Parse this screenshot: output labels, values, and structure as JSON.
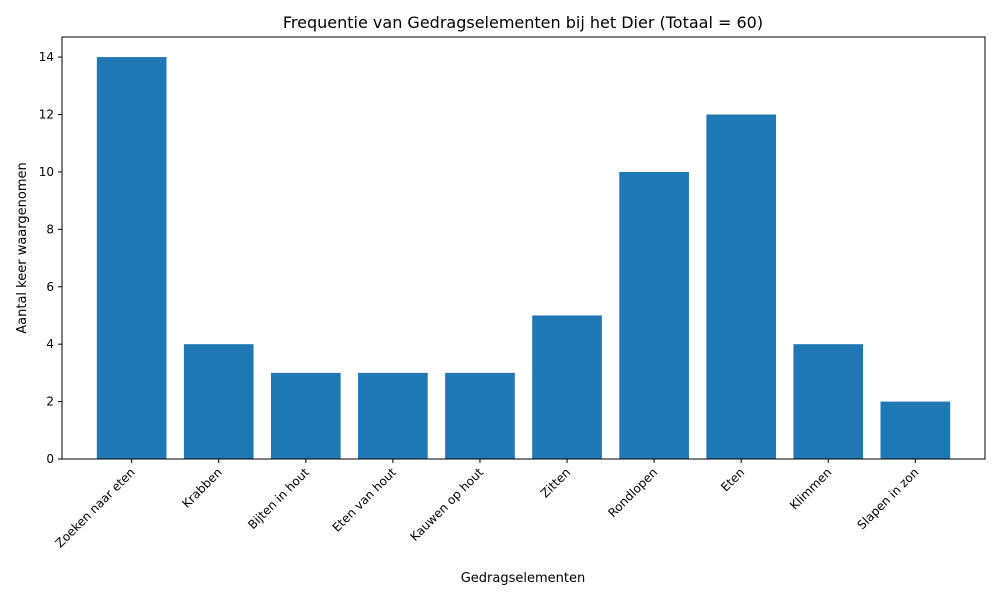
{
  "chart_data": {
    "type": "bar",
    "title": "Frequentie van Gedragselementen bij het Dier (Totaal = 60)",
    "xlabel": "Gedragselementen",
    "ylabel": "Aantal keer waargenomen",
    "categories": [
      "Zoeken naar eten",
      "Krabben",
      "Bijten in hout",
      "Eten van hout",
      "Kauwen op hout",
      "Zitten",
      "Rondlopen",
      "Eten",
      "Klimmen",
      "Slapen in zon"
    ],
    "values": [
      14,
      4,
      3,
      3,
      3,
      5,
      10,
      12,
      4,
      2
    ],
    "ylim": [
      0,
      14.7
    ],
    "yticks": [
      0,
      2,
      4,
      6,
      8,
      10,
      12,
      14
    ],
    "grid": false,
    "legend": "none",
    "bar_color": "#1f77b4"
  }
}
